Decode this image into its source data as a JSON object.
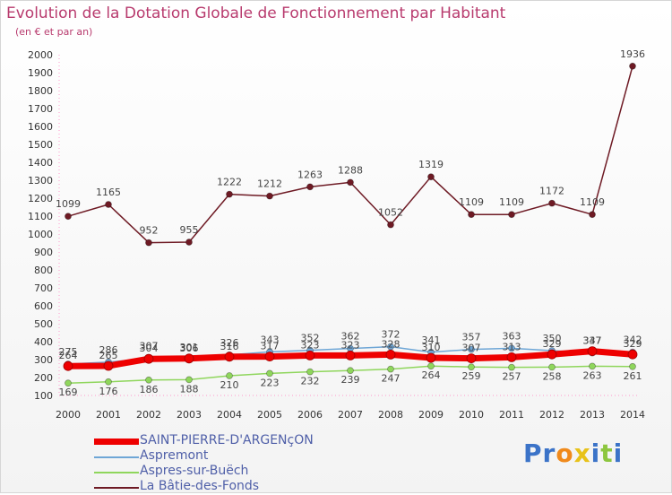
{
  "chart_data": {
    "type": "line",
    "title": "Evolution de la Dotation Globale de Fonctionnement par Habitant",
    "subtitle": "(en € et par an)",
    "xlabel": "",
    "ylabel": "",
    "x": [
      "2000",
      "2001",
      "2002",
      "2003",
      "2004",
      "2005",
      "2006",
      "2007",
      "2008",
      "2009",
      "2010",
      "2011",
      "2012",
      "2013",
      "2014"
    ],
    "ylim": [
      100,
      2000
    ],
    "yticks": [
      100,
      200,
      300,
      400,
      500,
      600,
      700,
      800,
      900,
      1000,
      1100,
      1200,
      1300,
      1400,
      1500,
      1600,
      1700,
      1800,
      1900,
      2000
    ],
    "grid": false,
    "legend_position": "bottom-left",
    "series": [
      {
        "name": "La Bâtie-des-Fonds",
        "color": "#6e1a24",
        "labels": true,
        "values": [
          1099,
          1165,
          952,
          955,
          1222,
          1212,
          1263,
          1288,
          1052,
          1319,
          1109,
          1109,
          1172,
          1109,
          1936
        ]
      },
      {
        "name": "Aspres-sur-Buëch",
        "color": "#8fd65c",
        "labels": true,
        "values": [
          169,
          176,
          186,
          188,
          210,
          223,
          232,
          239,
          247,
          264,
          259,
          257,
          258,
          263,
          261
        ]
      },
      {
        "name": "Aspremont",
        "color": "#6ea6d6",
        "labels": true,
        "values": [
          275,
          286,
          307,
          301,
          326,
          343,
          352,
          362,
          372,
          341,
          357,
          363,
          350,
          337,
          342
        ]
      },
      {
        "name": "SAINT-PIERRE-D'ARGENçON",
        "color": "#ee0000",
        "labels": true,
        "values": [
          264,
          265,
          304,
          306,
          316,
          317,
          323,
          323,
          328,
          310,
          307,
          313,
          329,
          347,
          329
        ]
      }
    ]
  },
  "legend": {
    "items": [
      {
        "label": "SAINT-PIERRE-D'ARGENçON",
        "color": "#ee0000"
      },
      {
        "label": "Aspremont",
        "color": "#6ea6d6"
      },
      {
        "label": "Aspres-sur-Buëch",
        "color": "#8fd65c"
      },
      {
        "label": "La Bâtie-des-Fonds",
        "color": "#6e1a24"
      }
    ]
  },
  "logo": {
    "text": "Proxiti",
    "letters": [
      {
        "ch": "P",
        "color": "#3b73c8"
      },
      {
        "ch": "r",
        "color": "#3b73c8"
      },
      {
        "ch": "o",
        "color": "#f08a1c"
      },
      {
        "ch": "x",
        "color": "#e8c21a"
      },
      {
        "ch": "i",
        "color": "#3b73c8"
      },
      {
        "ch": "t",
        "color": "#8dc63f"
      },
      {
        "ch": "i",
        "color": "#3b73c8"
      }
    ]
  }
}
